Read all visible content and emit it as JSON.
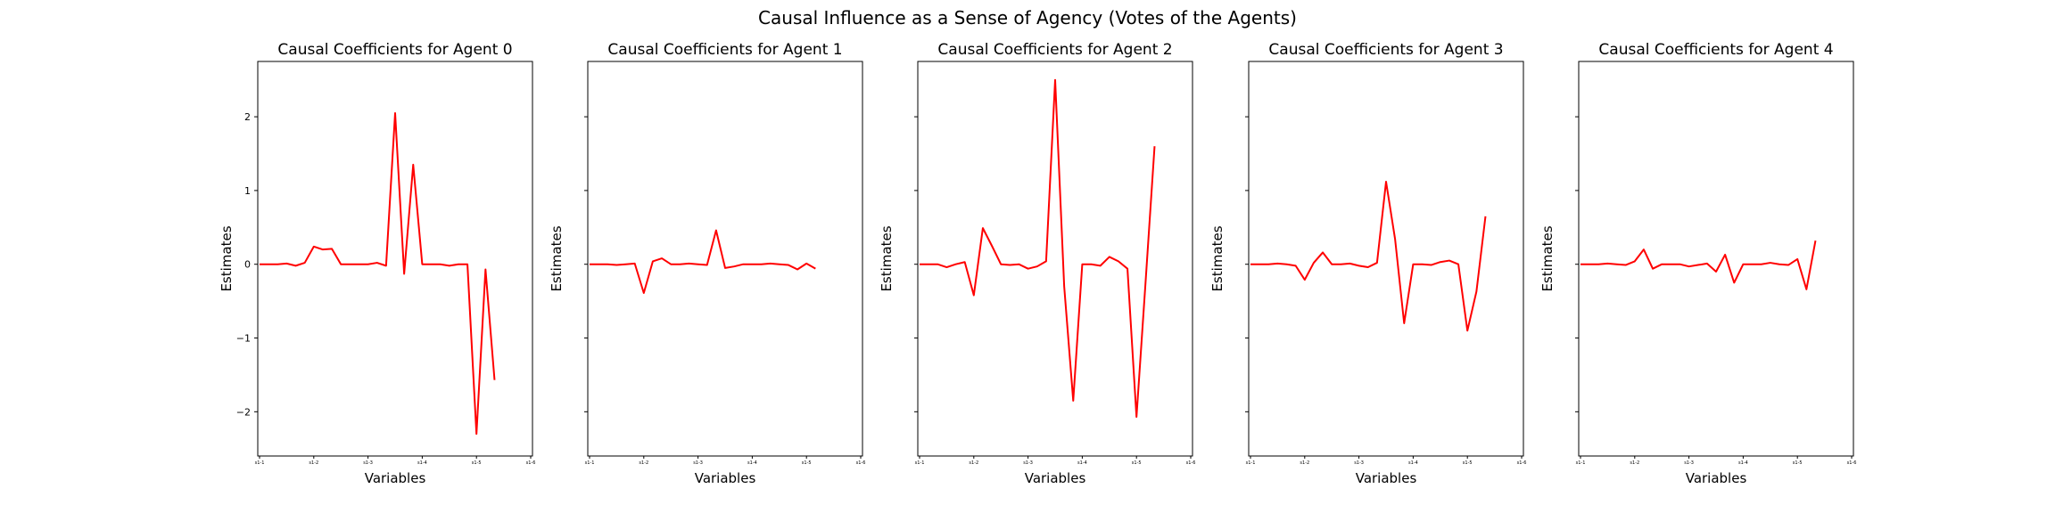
{
  "figure": {
    "suptitle": "Causal Influence as a Sense of Agency (Votes of the Agents)"
  },
  "chart_data": [
    {
      "type": "line",
      "title": "Causal Coefficients for Agent 0",
      "xlabel": "Variables",
      "ylabel": "Estimates",
      "ylim": [
        -2.6,
        2.75
      ],
      "yticks": [
        -2,
        -1,
        0,
        1,
        2
      ],
      "ytick_labels": [
        "−2",
        "−1",
        "0",
        "1",
        "2"
      ],
      "yticks_visible": true,
      "xtick_positions": [
        0,
        6,
        12,
        18,
        24,
        30
      ],
      "xtick_labels": [
        "s1-1",
        "s1-2",
        "s1-3",
        "s1-4",
        "s1-5",
        "s1-6"
      ],
      "color": "#ff0000",
      "values": [
        0,
        0,
        0,
        0.01,
        -0.02,
        0.02,
        0.24,
        0.2,
        0.21,
        0.0,
        0.0,
        0.0,
        0.0,
        0.02,
        -0.02,
        2.05,
        -0.13,
        1.35,
        0.0,
        0.0,
        0.0,
        -0.02,
        0.0,
        0.0,
        -2.3,
        -0.07,
        -1.57
      ]
    },
    {
      "type": "line",
      "title": "Causal Coefficients for Agent 1",
      "xlabel": "Variables",
      "ylabel": "Estimates",
      "ylim": [
        -2.6,
        2.75
      ],
      "yticks": [
        -2,
        -1,
        0,
        1,
        2
      ],
      "ytick_labels": [
        "",
        "",
        "",
        "",
        ""
      ],
      "yticks_visible": false,
      "xtick_positions": [
        0,
        6,
        12,
        18,
        24,
        30
      ],
      "xtick_labels": [
        "s1-1",
        "s1-2",
        "s1-3",
        "s1-4",
        "s1-5",
        "s1-6"
      ],
      "color": "#ff0000",
      "values": [
        0,
        0,
        0,
        -0.01,
        0,
        0.01,
        -0.39,
        0.04,
        0.08,
        0.0,
        0.0,
        0.01,
        0.0,
        -0.01,
        0.46,
        -0.05,
        -0.03,
        0.0,
        0.0,
        0.0,
        0.01,
        0.0,
        -0.01,
        -0.07,
        0.01,
        -0.06
      ]
    },
    {
      "type": "line",
      "title": "Causal Coefficients for Agent 2",
      "xlabel": "Variables",
      "ylabel": "Estimates",
      "ylim": [
        -2.6,
        2.75
      ],
      "yticks": [
        -2,
        -1,
        0,
        1,
        2
      ],
      "ytick_labels": [
        "",
        "",
        "",
        "",
        ""
      ],
      "yticks_visible": false,
      "xtick_positions": [
        0,
        6,
        12,
        18,
        24,
        30
      ],
      "xtick_labels": [
        "s1-1",
        "s1-2",
        "s1-3",
        "s1-4",
        "s1-5",
        "s1-6"
      ],
      "color": "#ff0000",
      "values": [
        0,
        0,
        0,
        -0.04,
        0.0,
        0.03,
        -0.42,
        0.49,
        0.25,
        0.0,
        -0.01,
        0.0,
        -0.06,
        -0.03,
        0.04,
        2.5,
        -0.3,
        -1.85,
        0.0,
        0.0,
        -0.02,
        0.1,
        0.04,
        -0.06,
        -2.07,
        -0.25,
        1.6
      ]
    },
    {
      "type": "line",
      "title": "Causal Coefficients for Agent 3",
      "xlabel": "Variables",
      "ylabel": "Estimates",
      "ylim": [
        -2.6,
        2.75
      ],
      "yticks": [
        -2,
        -1,
        0,
        1,
        2
      ],
      "ytick_labels": [
        "",
        "",
        "",
        "",
        ""
      ],
      "yticks_visible": false,
      "xtick_positions": [
        0,
        6,
        12,
        18,
        24,
        30
      ],
      "xtick_labels": [
        "s1-1",
        "s1-2",
        "s1-3",
        "s1-4",
        "s1-5",
        "s1-6"
      ],
      "color": "#ff0000",
      "values": [
        0,
        0,
        0,
        0.01,
        0,
        -0.02,
        -0.21,
        0.02,
        0.16,
        0.0,
        0.0,
        0.01,
        -0.02,
        -0.04,
        0.02,
        1.12,
        0.34,
        -0.8,
        0.0,
        0.0,
        -0.01,
        0.03,
        0.05,
        0.0,
        -0.9,
        -0.37,
        0.65
      ]
    },
    {
      "type": "line",
      "title": "Causal Coefficients for Agent 4",
      "xlabel": "Variables",
      "ylabel": "Estimates",
      "ylim": [
        -2.6,
        2.75
      ],
      "yticks": [
        -2,
        -1,
        0,
        1,
        2
      ],
      "ytick_labels": [
        "",
        "",
        "",
        "",
        ""
      ],
      "yticks_visible": false,
      "xtick_positions": [
        0,
        6,
        12,
        18,
        24,
        30
      ],
      "xtick_labels": [
        "s1-1",
        "s1-2",
        "s1-3",
        "s1-4",
        "s1-5",
        "s1-6"
      ],
      "color": "#ff0000",
      "values": [
        0,
        0,
        0,
        0.01,
        0,
        -0.01,
        0.04,
        0.2,
        -0.06,
        0.0,
        0.0,
        0.0,
        -0.03,
        -0.01,
        0.01,
        -0.1,
        0.13,
        -0.25,
        0.0,
        0.0,
        0.0,
        0.02,
        0.0,
        -0.01,
        0.07,
        -0.34,
        0.32
      ]
    }
  ]
}
